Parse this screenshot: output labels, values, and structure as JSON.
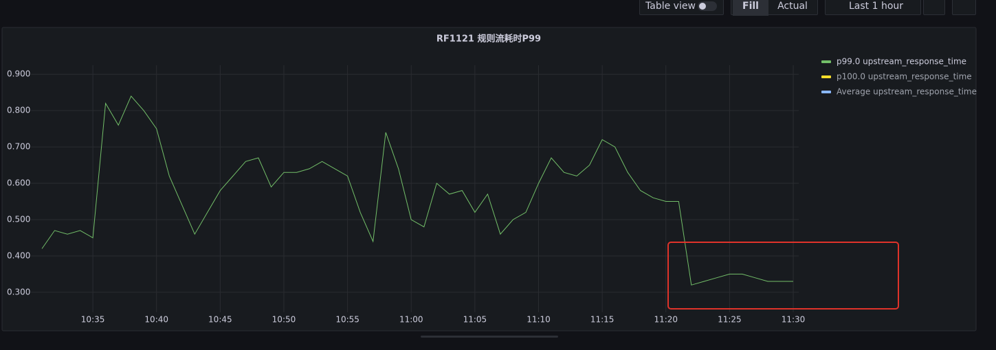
{
  "toolbar": {
    "table_view": "Table view",
    "fill": "Fill",
    "actual": "Actual",
    "time_range": "Last 1 hour"
  },
  "chart_data": {
    "type": "line",
    "title": "RF1121 规则流耗时P99",
    "x": [
      "10:31",
      "10:32",
      "10:33",
      "10:34",
      "10:35",
      "10:36",
      "10:37",
      "10:38",
      "10:39",
      "10:40",
      "10:41",
      "10:42",
      "10:43",
      "10:44",
      "10:45",
      "10:46",
      "10:47",
      "10:48",
      "10:49",
      "10:50",
      "10:51",
      "10:52",
      "10:53",
      "10:54",
      "10:55",
      "10:56",
      "10:57",
      "10:58",
      "10:59",
      "11:00",
      "11:01",
      "11:02",
      "11:03",
      "11:04",
      "11:05",
      "11:06",
      "11:07",
      "11:08",
      "11:09",
      "11:10",
      "11:11",
      "11:12",
      "11:13",
      "11:14",
      "11:15",
      "11:16",
      "11:17",
      "11:18",
      "11:19",
      "11:20",
      "11:21",
      "11:22",
      "11:23",
      "11:24",
      "11:25",
      "11:26",
      "11:27",
      "11:28",
      "11:29",
      "11:30"
    ],
    "series": [
      {
        "name": "p99.0 upstream_response_time",
        "color": "#73bf69",
        "values": [
          0.42,
          0.47,
          0.46,
          0.47,
          0.45,
          0.82,
          0.76,
          0.84,
          0.8,
          0.75,
          0.62,
          0.54,
          0.46,
          0.52,
          0.58,
          0.62,
          0.66,
          0.67,
          0.59,
          0.63,
          0.63,
          0.64,
          0.66,
          0.64,
          0.62,
          0.52,
          0.44,
          0.74,
          0.64,
          0.5,
          0.48,
          0.6,
          0.57,
          0.58,
          0.52,
          0.57,
          0.46,
          0.5,
          0.52,
          0.6,
          0.67,
          0.63,
          0.62,
          0.65,
          0.72,
          0.7,
          0.63,
          0.58,
          0.56,
          0.55,
          0.55,
          0.32,
          0.33,
          0.34,
          0.35,
          0.35,
          0.34,
          0.33,
          0.33,
          0.33
        ]
      },
      {
        "name": "p100.0 upstream_response_time",
        "color": "#fade2a",
        "values": [
          null,
          null,
          null,
          null,
          null,
          null,
          null,
          null,
          null,
          null,
          null,
          null,
          null,
          null,
          null,
          null,
          null,
          null,
          null,
          null,
          null,
          null,
          null,
          null,
          null,
          null,
          null,
          null,
          null,
          null,
          null,
          null,
          null,
          null,
          null,
          null,
          null,
          null,
          null,
          null,
          null,
          null,
          null,
          null,
          null,
          null,
          null,
          null,
          null,
          null,
          null,
          null,
          null,
          null,
          null,
          null,
          null,
          null,
          null,
          null
        ]
      },
      {
        "name": "Average upstream_response_time",
        "color": "#8ab8ff",
        "values": [
          null,
          null,
          null,
          null,
          null,
          null,
          null,
          null,
          null,
          null,
          null,
          null,
          null,
          null,
          null,
          null,
          null,
          null,
          null,
          null,
          null,
          null,
          null,
          null,
          null,
          null,
          null,
          null,
          null,
          null,
          null,
          null,
          null,
          null,
          null,
          null,
          null,
          null,
          null,
          null,
          null,
          null,
          null,
          null,
          null,
          null,
          null,
          null,
          null,
          null,
          null,
          null,
          null,
          null,
          null,
          null,
          null,
          null,
          null,
          null
        ]
      }
    ],
    "xticks": [
      "10:35",
      "10:40",
      "10:45",
      "10:50",
      "10:55",
      "11:00",
      "11:05",
      "11:10",
      "11:15",
      "11:20",
      "11:25",
      "11:30"
    ],
    "ylim": [
      0.245,
      0.925
    ],
    "yticks": [
      {
        "value": 0.3,
        "label": "0.300"
      },
      {
        "value": 0.4,
        "label": "0.400"
      },
      {
        "value": 0.5,
        "label": "0.500"
      },
      {
        "value": 0.6,
        "label": "0.600"
      },
      {
        "value": 0.7,
        "label": "0.700"
      },
      {
        "value": 0.8,
        "label": "0.800"
      },
      {
        "value": 0.9,
        "label": "0.900"
      }
    ],
    "grid": true
  }
}
